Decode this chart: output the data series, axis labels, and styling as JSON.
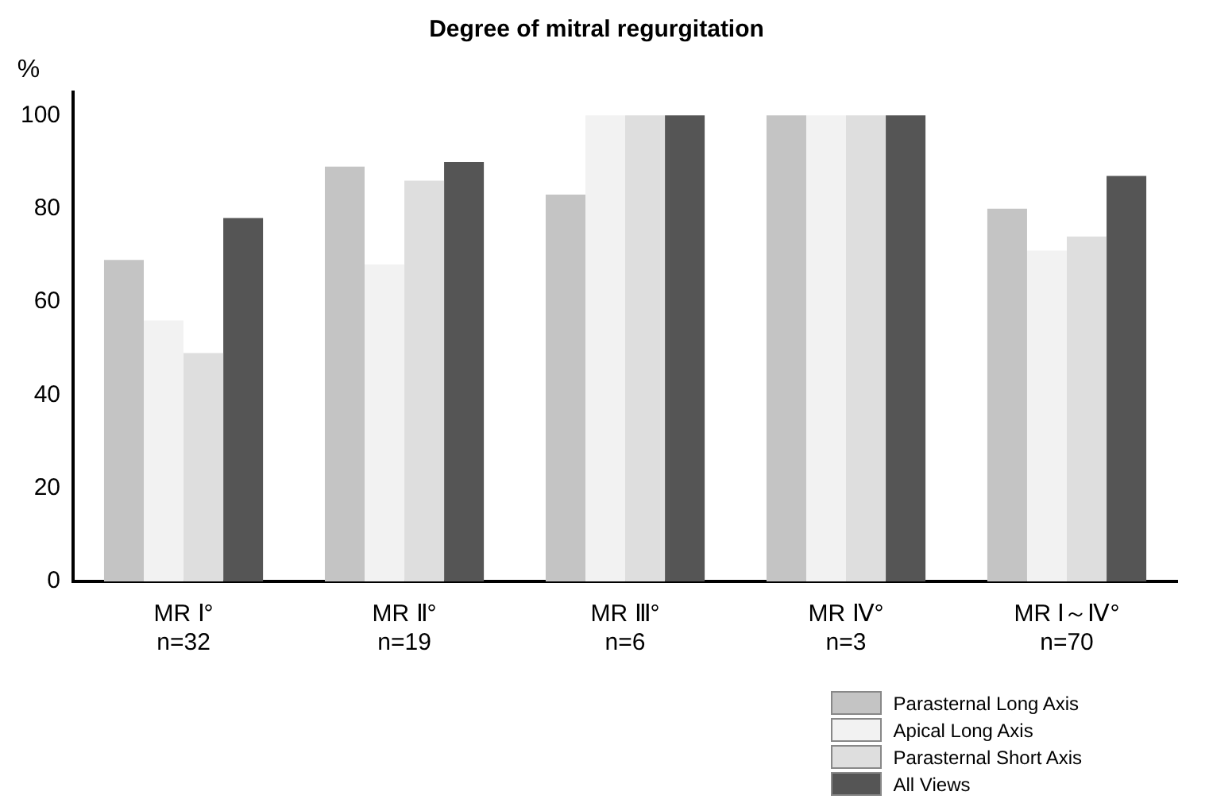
{
  "chart_data": {
    "type": "bar",
    "title": "Degree of mitral regurgitation",
    "ylabel": "%",
    "categories": [
      "MR Ⅰ°\nn=32",
      "MR Ⅱ°\nn=19",
      "MR Ⅲ°\nn=6",
      "MR Ⅳ°\nn=3",
      "MR Ⅰ～Ⅳ°\nn=70"
    ],
    "series": [
      {
        "name": "Parasternal Long Axis",
        "color": "#c4c4c4",
        "values": [
          69,
          89,
          83,
          100,
          80
        ]
      },
      {
        "name": "Apical Long Axis",
        "color": "#f2f2f2",
        "values": [
          56,
          68,
          100,
          100,
          71
        ]
      },
      {
        "name": "Parasternal Short Axis",
        "color": "#dedede",
        "values": [
          49,
          86,
          100,
          100,
          74
        ]
      },
      {
        "name": "All Views",
        "color": "#555555",
        "values": [
          78,
          90,
          100,
          100,
          87
        ]
      }
    ],
    "ylim": [
      0,
      105
    ],
    "yticks": [
      0,
      20,
      40,
      60,
      80,
      100
    ],
    "grid": false,
    "legend": "bottom right"
  }
}
